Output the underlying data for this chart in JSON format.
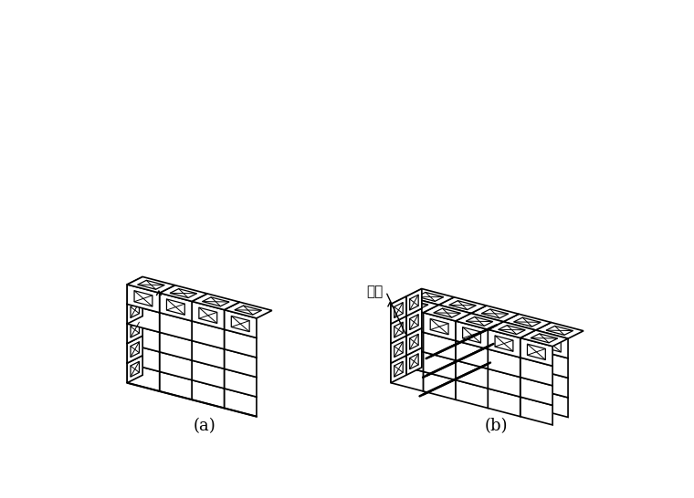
{
  "bg_color": "#ffffff",
  "line_color": "#000000",
  "label_a": "(a)",
  "label_b": "(b)",
  "label_gangjin": "钒筋",
  "fig_width": 7.6,
  "fig_height": 5.46,
  "dpi": 100
}
